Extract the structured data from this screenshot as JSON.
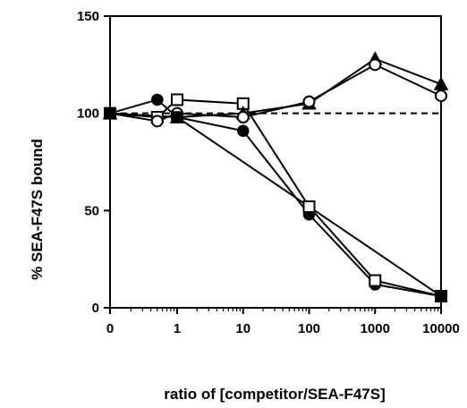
{
  "chart_data": {
    "type": "line",
    "title": "",
    "xlabel": "ratio of [competitor/SEA-F47S]",
    "ylabel": "% SEA-F47S bound",
    "x_scale": "log",
    "x_ticks": [
      "0",
      "1",
      "10",
      "100",
      "1000",
      "10000"
    ],
    "y_ticks": [
      "0",
      "50",
      "100",
      "150"
    ],
    "ylim": [
      0,
      150
    ],
    "grid": false,
    "legend": "none",
    "series": [
      {
        "marker": "filled-circle",
        "points": [
          {
            "x": "0",
            "y": 100
          },
          {
            "x": "0.5",
            "y": 107
          },
          {
            "x": "1",
            "y": 98
          },
          {
            "x": "10",
            "y": 91
          },
          {
            "x": "100",
            "y": 48
          },
          {
            "x": "1000",
            "y": 12
          },
          {
            "x": "10000",
            "y": 6
          }
        ]
      },
      {
        "marker": "open-square",
        "points": [
          {
            "x": "0",
            "y": 100
          },
          {
            "x": "0.5",
            "y": 98
          },
          {
            "x": "1",
            "y": 107
          },
          {
            "x": "10",
            "y": 105
          },
          {
            "x": "100",
            "y": 52
          },
          {
            "x": "1000",
            "y": 14
          },
          {
            "x": "10000",
            "y": 6
          }
        ]
      },
      {
        "marker": "filled-triangle",
        "points": [
          {
            "x": "0",
            "y": 100
          },
          {
            "x": "1",
            "y": 98
          },
          {
            "x": "10",
            "y": 100
          },
          {
            "x": "100",
            "y": 105
          },
          {
            "x": "1000",
            "y": 128
          },
          {
            "x": "10000",
            "y": 115
          }
        ]
      },
      {
        "marker": "open-circle",
        "points": [
          {
            "x": "0",
            "y": 100
          },
          {
            "x": "0.5",
            "y": 96
          },
          {
            "x": "1",
            "y": 100
          },
          {
            "x": "10",
            "y": 98
          },
          {
            "x": "100",
            "y": 106
          },
          {
            "x": "1000",
            "y": 125
          },
          {
            "x": "10000",
            "y": 109
          }
        ]
      },
      {
        "marker": "filled-square",
        "points": [
          {
            "x": "0",
            "y": 100
          },
          {
            "x": "1",
            "y": 98
          },
          {
            "x": "10000",
            "y": 6
          }
        ]
      }
    ],
    "reference_line": {
      "y": 100,
      "style": "dashed"
    }
  }
}
